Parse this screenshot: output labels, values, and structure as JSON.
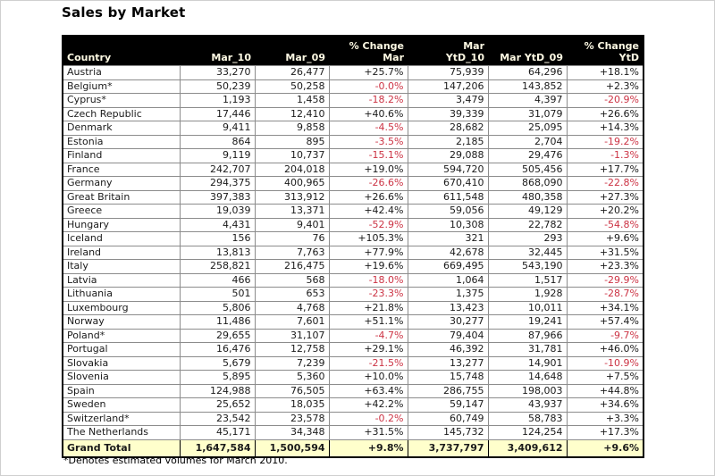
{
  "colors": {
    "header_bg": "#000000",
    "header_text": "#FDF9E3",
    "total_bg": "#FFFFCC",
    "negative": "#CC3344",
    "grid": "#8C8C8C",
    "border": "#000000",
    "text": "#1A1A1A"
  },
  "chart_data": {
    "type": "table",
    "title": "Sales by Market",
    "footnote": "*Denotes estimated volumes for March 2010.",
    "columns": [
      "Country",
      "Mar_10",
      "Mar_09",
      "% Change\nMar",
      "Mar\nYtD_10",
      "Mar YtD_09",
      "% Change\nYtD"
    ],
    "rows": [
      [
        "Austria",
        "33,270",
        "26,477",
        "+25.7%",
        "75,939",
        "64,296",
        "+18.1%"
      ],
      [
        "Belgium*",
        "50,239",
        "50,258",
        "-0.0%",
        "147,206",
        "143,852",
        "+2.3%"
      ],
      [
        "Cyprus*",
        "1,193",
        "1,458",
        "-18.2%",
        "3,479",
        "4,397",
        "-20.9%"
      ],
      [
        "Czech Republic",
        "17,446",
        "12,410",
        "+40.6%",
        "39,339",
        "31,079",
        "+26.6%"
      ],
      [
        "Denmark",
        "9,411",
        "9,858",
        "-4.5%",
        "28,682",
        "25,095",
        "+14.3%"
      ],
      [
        "Estonia",
        "864",
        "895",
        "-3.5%",
        "2,185",
        "2,704",
        "-19.2%"
      ],
      [
        "Finland",
        "9,119",
        "10,737",
        "-15.1%",
        "29,088",
        "29,476",
        "-1.3%"
      ],
      [
        "France",
        "242,707",
        "204,018",
        "+19.0%",
        "594,720",
        "505,456",
        "+17.7%"
      ],
      [
        "Germany",
        "294,375",
        "400,965",
        "-26.6%",
        "670,410",
        "868,090",
        "-22.8%"
      ],
      [
        "Great Britain",
        "397,383",
        "313,912",
        "+26.6%",
        "611,548",
        "480,358",
        "+27.3%"
      ],
      [
        "Greece",
        "19,039",
        "13,371",
        "+42.4%",
        "59,056",
        "49,129",
        "+20.2%"
      ],
      [
        "Hungary",
        "4,431",
        "9,401",
        "-52.9%",
        "10,308",
        "22,782",
        "-54.8%"
      ],
      [
        "Iceland",
        "156",
        "76",
        "+105.3%",
        "321",
        "293",
        "+9.6%"
      ],
      [
        "Ireland",
        "13,813",
        "7,763",
        "+77.9%",
        "42,678",
        "32,445",
        "+31.5%"
      ],
      [
        "Italy",
        "258,821",
        "216,475",
        "+19.6%",
        "669,495",
        "543,190",
        "+23.3%"
      ],
      [
        "Latvia",
        "466",
        "568",
        "-18.0%",
        "1,064",
        "1,517",
        "-29.9%"
      ],
      [
        "Lithuania",
        "501",
        "653",
        "-23.3%",
        "1,375",
        "1,928",
        "-28.7%"
      ],
      [
        "Luxembourg",
        "5,806",
        "4,768",
        "+21.8%",
        "13,423",
        "10,011",
        "+34.1%"
      ],
      [
        "Norway",
        "11,486",
        "7,601",
        "+51.1%",
        "30,277",
        "19,241",
        "+57.4%"
      ],
      [
        "Poland*",
        "29,655",
        "31,107",
        "-4.7%",
        "79,404",
        "87,966",
        "-9.7%"
      ],
      [
        "Portugal",
        "16,476",
        "12,758",
        "+29.1%",
        "46,392",
        "31,781",
        "+46.0%"
      ],
      [
        "Slovakia",
        "5,679",
        "7,239",
        "-21.5%",
        "13,277",
        "14,901",
        "-10.9%"
      ],
      [
        "Slovenia",
        "5,895",
        "5,360",
        "+10.0%",
        "15,748",
        "14,648",
        "+7.5%"
      ],
      [
        "Spain",
        "124,988",
        "76,505",
        "+63.4%",
        "286,755",
        "198,003",
        "+44.8%"
      ],
      [
        "Sweden",
        "25,652",
        "18,035",
        "+42.2%",
        "59,147",
        "43,937",
        "+34.6%"
      ],
      [
        "Switzerland*",
        "23,542",
        "23,578",
        "-0.2%",
        "60,749",
        "58,783",
        "+3.3%"
      ],
      [
        "The Netherlands",
        "45,171",
        "34,348",
        "+31.5%",
        "145,732",
        "124,254",
        "+17.3%"
      ]
    ],
    "grand_total": [
      "Grand Total",
      "1,647,584",
      "1,500,594",
      "+9.8%",
      "3,737,797",
      "3,409,612",
      "+9.6%"
    ]
  }
}
